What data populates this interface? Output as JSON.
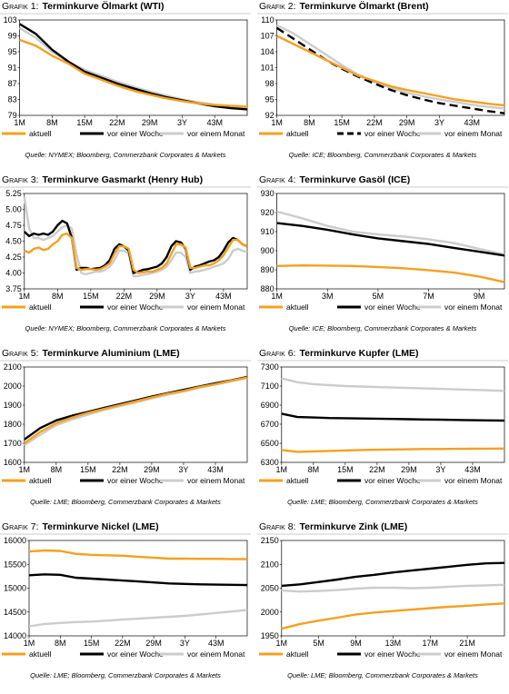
{
  "chart_data": [
    {
      "type": "line",
      "label": "Grafik 1:",
      "title": "Terminkurve Ölmarkt (WTI)",
      "categories": [
        "1M",
        null,
        "8M",
        null,
        "15M",
        null,
        "22M",
        null,
        "29M",
        null,
        "3Y",
        null,
        "43M",
        null,
        null
      ],
      "series": [
        {
          "name": "aktuell",
          "color": "#f5a020",
          "values": [
            98,
            96.5,
            94,
            92,
            89.5,
            88,
            86.5,
            85.2,
            84.2,
            83.3,
            82.6,
            82,
            81.6,
            81.4,
            81.2
          ]
        },
        {
          "name": "vor einer Woche",
          "color": "#000000",
          "values": [
            102,
            99.5,
            95.5,
            92.5,
            90,
            88.5,
            87,
            85.8,
            84.6,
            83.6,
            82.8,
            82,
            81.3,
            80.8,
            80.5
          ]
        },
        {
          "name": "vor einem Monat",
          "color": "#cccccc",
          "values": [
            101,
            98.5,
            95,
            92.5,
            90.5,
            89,
            87.5,
            86.2,
            85,
            84,
            83,
            82.3,
            81.7,
            81.2,
            81
          ]
        }
      ],
      "ylim": [
        79,
        103
      ],
      "yticks": [
        79,
        83,
        87,
        91,
        95,
        99,
        103
      ],
      "source": "Quelle: NYMEX; Bloomberg, Commerzbank Corporates & Markets"
    },
    {
      "type": "line",
      "label": "Grafik 2:",
      "title": "Terminkurve Ölmarkt (Brent)",
      "categories": [
        "1M",
        null,
        "8M",
        null,
        "15M",
        null,
        "22M",
        null,
        "29M",
        null,
        "3Y",
        null,
        "43M",
        null,
        null
      ],
      "series": [
        {
          "name": "aktuell",
          "color": "#f5a020",
          "values": [
            107,
            105.5,
            104,
            102.5,
            101,
            99.5,
            98.5,
            97.5,
            96.8,
            96.2,
            95.6,
            95,
            94.6,
            94.2,
            93.9
          ]
        },
        {
          "name": "vor einer Woche",
          "color": "#000000",
          "dashed": true,
          "values": [
            108.5,
            106.5,
            104.5,
            102.5,
            100.8,
            99.3,
            98,
            96.8,
            95.8,
            95,
            94.3,
            93.8,
            93.3,
            92.8,
            92.4
          ]
        },
        {
          "name": "vor einem Monat",
          "color": "#cccccc",
          "values": [
            109,
            107.5,
            105.5,
            103.5,
            101.5,
            99.7,
            98.3,
            97.2,
            96.3,
            95.6,
            95,
            94.5,
            94,
            93.6,
            93.3
          ]
        }
      ],
      "ylim": [
        92,
        110
      ],
      "yticks": [
        92,
        95,
        98,
        101,
        104,
        107,
        110
      ],
      "source": "Quelle: ICE; Bloomberg, Commerzbank Corporates & Markets"
    },
    {
      "type": "line",
      "label": "Grafik 3:",
      "title": "Terminkurve Gasmarkt (Henry Hub)",
      "categories": [
        "1M",
        null,
        null,
        null,
        null,
        null,
        null,
        "8M",
        null,
        null,
        null,
        null,
        null,
        null,
        "15M",
        null,
        null,
        null,
        null,
        null,
        null,
        "22M",
        null,
        null,
        null,
        null,
        null,
        null,
        "29M",
        null,
        null,
        null,
        null,
        null,
        null,
        "3Y",
        null,
        null,
        null,
        null,
        null,
        null,
        "43M",
        null,
        null,
        null,
        null,
        null
      ],
      "series": [
        {
          "name": "aktuell",
          "color": "#f5a020",
          "values": [
            4.35,
            4.32,
            4.38,
            4.4,
            4.36,
            4.38,
            4.45,
            4.5,
            4.6,
            4.62,
            4.55,
            4.08,
            4.05,
            4.06,
            4.06,
            4.05,
            4.06,
            4.1,
            4.15,
            4.3,
            4.42,
            4.42,
            4.38,
            4.05,
            4.0,
            4.01,
            4.02,
            4.02,
            4.05,
            4.08,
            4.15,
            4.3,
            4.45,
            4.45,
            4.4,
            4.08,
            4.08,
            4.1,
            4.12,
            4.12,
            4.15,
            4.2,
            4.28,
            4.4,
            4.52,
            4.52,
            4.45,
            4.42
          ]
        },
        {
          "name": "vor einer Woche",
          "color": "#000000",
          "values": [
            4.65,
            4.58,
            4.62,
            4.6,
            4.62,
            4.6,
            4.65,
            4.75,
            4.82,
            4.78,
            4.55,
            4.05,
            4.08,
            4.08,
            4.06,
            4.07,
            4.08,
            4.12,
            4.2,
            4.38,
            4.45,
            4.42,
            4.35,
            4.0,
            4.02,
            4.05,
            4.06,
            4.08,
            4.1,
            4.15,
            4.25,
            4.42,
            4.5,
            4.48,
            4.38,
            4.05,
            4.1,
            4.12,
            4.15,
            4.18,
            4.2,
            4.25,
            4.35,
            4.48,
            4.55,
            4.52,
            4.45,
            4.42
          ]
        },
        {
          "name": "vor einem Monat",
          "color": "#cccccc",
          "values": [
            5.2,
            4.7,
            4.55,
            4.55,
            4.52,
            4.55,
            4.58,
            4.65,
            4.72,
            4.75,
            4.7,
            4.3,
            4.0,
            3.98,
            4.0,
            4.02,
            4.02,
            4.05,
            4.1,
            4.2,
            4.35,
            4.35,
            4.3,
            3.95,
            3.95,
            3.97,
            3.98,
            4.0,
            4.02,
            4.05,
            4.1,
            4.2,
            4.32,
            4.32,
            4.25,
            4.0,
            4.02,
            4.03,
            4.05,
            4.07,
            4.1,
            4.12,
            4.15,
            4.22,
            4.35,
            4.38,
            4.35,
            4.33
          ]
        }
      ],
      "ylim": [
        3.75,
        5.25
      ],
      "yticks": [
        3.75,
        {
          "value": 4,
          "label": "4.00"
        },
        4.25,
        {
          "value": 4.5,
          "label": "4.50"
        },
        4.75,
        {
          "value": 5,
          "label": "5.00"
        },
        5.25
      ],
      "source": "Quelle: NYMEX; Bloomberg, Commerzbank Corporates & Markets"
    },
    {
      "type": "line",
      "label": "Grafik 4:",
      "title": "Terminkurve Gasöl (ICE)",
      "categories": [
        "1M",
        null,
        "3M",
        null,
        "5M",
        null,
        "7M",
        null,
        "9M",
        null
      ],
      "series": [
        {
          "name": "aktuell",
          "color": "#f5a020",
          "values": [
            892,
            892.3,
            892.2,
            892,
            891.5,
            890.8,
            889.8,
            888.5,
            886.5,
            883.5
          ]
        },
        {
          "name": "vor einer Woche",
          "color": "#000000",
          "values": [
            914.5,
            913,
            911,
            908.5,
            906.5,
            905,
            903.5,
            901.5,
            899.5,
            897.5
          ]
        },
        {
          "name": "vor einem Monat",
          "color": "#cccccc",
          "values": [
            920.5,
            917,
            913,
            910,
            908.5,
            907.5,
            906,
            904,
            901,
            898
          ]
        }
      ],
      "ylim": [
        880,
        930
      ],
      "yticks": [
        880,
        890,
        900,
        910,
        920,
        930
      ],
      "source": "Quelle: ICE; Bloomberg, Commerzbank Corporates & Markets"
    },
    {
      "type": "line",
      "label": "Grafik 5:",
      "title": "Terminkurve Aluminium (LME)",
      "categories": [
        "1M",
        null,
        "8M",
        null,
        "15M",
        null,
        "22M",
        null,
        "29M",
        null,
        "3Y",
        null,
        "43M",
        null,
        null
      ],
      "series": [
        {
          "name": "aktuell",
          "color": "#f5a020",
          "values": [
            1700,
            1760,
            1805,
            1835,
            1860,
            1880,
            1900,
            1920,
            1940,
            1960,
            1975,
            1995,
            2010,
            2028,
            2045
          ]
        },
        {
          "name": "vor einer Woche",
          "color": "#000000",
          "values": [
            1720,
            1780,
            1820,
            1845,
            1865,
            1885,
            1905,
            1925,
            1945,
            1963,
            1980,
            1998,
            2015,
            2030,
            2048
          ]
        },
        {
          "name": "vor einem Monat",
          "color": "#cccccc",
          "values": [
            1690,
            1745,
            1795,
            1825,
            1850,
            1875,
            1895,
            1915,
            1935,
            1955,
            1972,
            1992,
            2008,
            2025,
            2043
          ]
        }
      ],
      "ylim": [
        1600,
        2100
      ],
      "yticks": [
        1600,
        1700,
        1800,
        1900,
        2000,
        2100
      ],
      "source": "Quelle: LME; Bloomberg, Commerzbank Corporates & Markets"
    },
    {
      "type": "line",
      "label": "Grafik 6:",
      "title": "Terminkurve Kupfer (LME)",
      "categories": [
        "1M",
        null,
        "8M",
        null,
        "15M",
        null,
        "22M",
        null,
        "29M",
        null,
        "3Y",
        null,
        "43M",
        null,
        null
      ],
      "series": [
        {
          "name": "aktuell",
          "color": "#f5a020",
          "values": [
            6430,
            6410,
            6415,
            6420,
            6425,
            6430,
            6432,
            6435,
            6437,
            6440,
            6440,
            6442,
            6443,
            6444,
            6445
          ]
        },
        {
          "name": "vor einer Woche",
          "color": "#000000",
          "values": [
            6810,
            6775,
            6770,
            6765,
            6763,
            6760,
            6758,
            6755,
            6752,
            6750,
            6748,
            6745,
            6742,
            6740,
            6738
          ]
        },
        {
          "name": "vor einem Monat",
          "color": "#cccccc",
          "values": [
            7180,
            7140,
            7120,
            7110,
            7100,
            7095,
            7090,
            7085,
            7080,
            7075,
            7070,
            7065,
            7060,
            7055,
            7050
          ]
        }
      ],
      "ylim": [
        6300,
        7300
      ],
      "yticks": [
        6300,
        6500,
        6700,
        6900,
        7100,
        7300
      ],
      "source": "Quelle: LME; Bloomberg, Commerzbank Corporates & Markets"
    },
    {
      "type": "line",
      "label": "Grafik 7:",
      "title": "Terminkurve Nickel (LME)",
      "categories": [
        "1M",
        null,
        "8M",
        null,
        "15M",
        null,
        "22M",
        null,
        "29M",
        null,
        "3Y",
        null,
        "43M",
        null,
        null
      ],
      "series": [
        {
          "name": "aktuell",
          "color": "#f5a020",
          "values": [
            15770,
            15790,
            15780,
            15720,
            15700,
            15690,
            15680,
            15660,
            15640,
            15620,
            15620,
            15615,
            15615,
            15612,
            15610
          ]
        },
        {
          "name": "vor einer Woche",
          "color": "#000000",
          "values": [
            15270,
            15290,
            15280,
            15220,
            15200,
            15180,
            15160,
            15140,
            15120,
            15100,
            15090,
            15080,
            15075,
            15070,
            15065
          ]
        },
        {
          "name": "vor einem Monat",
          "color": "#cccccc",
          "values": [
            14200,
            14250,
            14270,
            14290,
            14300,
            14320,
            14340,
            14360,
            14380,
            14400,
            14420,
            14450,
            14480,
            14510,
            14540
          ]
        }
      ],
      "ylim": [
        14000,
        16000
      ],
      "yticks": [
        14000,
        14500,
        15000,
        15500,
        16000
      ],
      "source": "Quelle: LME; Bloomberg, Commerzbank Corporates & Markets"
    },
    {
      "type": "line",
      "label": "Grafik 8:",
      "title": "Terminkurve Zink (LME)",
      "categories": [
        "1M",
        null,
        "5M",
        null,
        "9M",
        null,
        "13M",
        null,
        "17M",
        null,
        "21M",
        null,
        null
      ],
      "series": [
        {
          "name": "aktuell",
          "color": "#f5a020",
          "values": [
            1965,
            1975,
            1982,
            1988,
            1995,
            1999,
            2002,
            2005,
            2008,
            2011,
            2013,
            2016,
            2018
          ]
        },
        {
          "name": "vor einer Woche",
          "color": "#000000",
          "values": [
            2055,
            2058,
            2063,
            2068,
            2074,
            2078,
            2083,
            2087,
            2091,
            2095,
            2099,
            2102,
            2103
          ]
        },
        {
          "name": "vor einem Monat",
          "color": "#cccccc",
          "values": [
            2045,
            2043,
            2044,
            2046,
            2049,
            2051,
            2051,
            2050,
            2051,
            2053,
            2055,
            2056,
            2057
          ]
        }
      ],
      "ylim": [
        1950,
        2150
      ],
      "yticks": [
        1950,
        2000,
        2050,
        2100,
        2150
      ],
      "source": "Quelle: LME; Bloomberg, Commerzbank Corporates & Markets"
    }
  ]
}
